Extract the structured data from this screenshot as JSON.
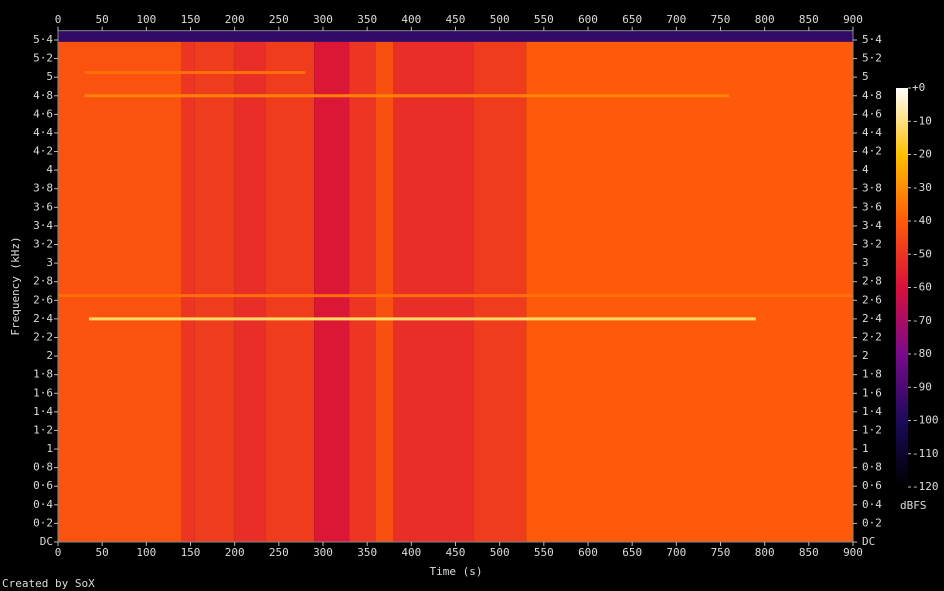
{
  "chart_data": {
    "type": "spectrogram",
    "xlabel": "Time (s)",
    "ylabel": "Frequency (kHz)",
    "footer": "Created by SoX",
    "colorbar_label": "dBFS",
    "xlim": [
      0,
      900
    ],
    "xticks": [
      0,
      50,
      100,
      150,
      200,
      250,
      300,
      350,
      400,
      450,
      500,
      550,
      600,
      650,
      700,
      750,
      800,
      850,
      900
    ],
    "ylim": [
      0,
      5.5
    ],
    "yticks": [
      {
        "value": 0,
        "label": "DC"
      },
      {
        "value": 0.2,
        "label": "0·2"
      },
      {
        "value": 0.4,
        "label": "0·4"
      },
      {
        "value": 0.6,
        "label": "0·6"
      },
      {
        "value": 0.8,
        "label": "0·8"
      },
      1,
      {
        "value": 1.2,
        "label": "1·2"
      },
      {
        "value": 1.4,
        "label": "1·4"
      },
      {
        "value": 1.6,
        "label": "1·6"
      },
      {
        "value": 1.8,
        "label": "1·8"
      },
      2,
      {
        "value": 2.2,
        "label": "2·2"
      },
      {
        "value": 2.4,
        "label": "2·4"
      },
      {
        "value": 2.6,
        "label": "2·6"
      },
      {
        "value": 2.8,
        "label": "2·8"
      },
      3,
      {
        "value": 3.2,
        "label": "3·2"
      },
      {
        "value": 3.4,
        "label": "3·4"
      },
      {
        "value": 3.6,
        "label": "3·6"
      },
      {
        "value": 3.8,
        "label": "3·8"
      },
      4,
      {
        "value": 4.2,
        "label": "4·2"
      },
      {
        "value": 4.4,
        "label": "4·4"
      },
      {
        "value": 4.6,
        "label": "4·6"
      },
      {
        "value": 4.8,
        "label": "4·8"
      },
      5,
      {
        "value": 5.2,
        "label": "5·2"
      },
      {
        "value": 5.4,
        "label": "5·4"
      }
    ],
    "zlim": [
      -120,
      0
    ],
    "zticks": [
      {
        "value": 0,
        "label": "+0"
      },
      -10,
      -20,
      -30,
      -40,
      -50,
      -60,
      -70,
      -80,
      -90,
      -100,
      -110,
      -120
    ],
    "colormap": [
      "#000000",
      "#1c0a5c",
      "#7a0a8c",
      "#d8103a",
      "#ff5a0a",
      "#ffc000",
      "#ffffff"
    ],
    "segment_edges": [
      0,
      140,
      155,
      200,
      235,
      290,
      330,
      360,
      380,
      470,
      530,
      900
    ],
    "values": [
      -42,
      -50,
      -48,
      -52,
      -48,
      -58,
      -50,
      -43,
      -52,
      -48,
      -40
    ],
    "rolloff_khz": 5.38,
    "rolloff_level": -95,
    "tones": [
      {
        "freq": 2.4,
        "start": 35,
        "end": 790,
        "level": -12
      },
      {
        "freq": 4.8,
        "start": 30,
        "end": 760,
        "level": -32
      },
      {
        "freq": 5.05,
        "start": 30,
        "end": 280,
        "level": -36
      },
      {
        "freq": 2.65,
        "start": 0,
        "end": 900,
        "level": -36
      }
    ]
  }
}
